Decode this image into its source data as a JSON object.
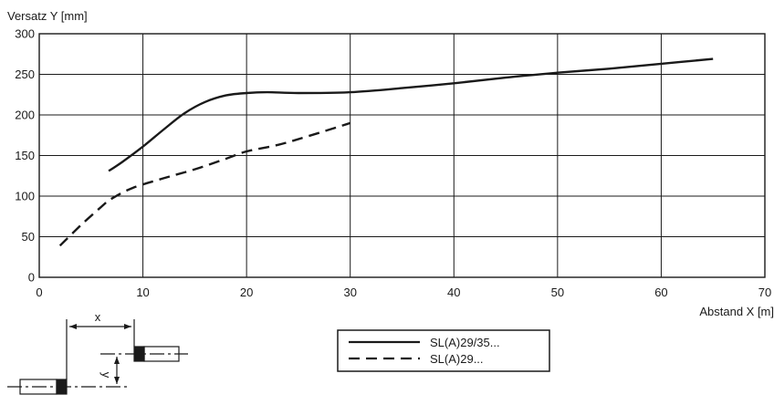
{
  "chart_data": {
    "type": "line",
    "title": "",
    "xlabel": "Abstand X [m]",
    "ylabel": "Versatz Y [mm]",
    "xlim": [
      0,
      70
    ],
    "ylim": [
      0,
      300
    ],
    "xticks": [
      0,
      10,
      20,
      30,
      40,
      50,
      60,
      70
    ],
    "yticks": [
      0,
      50,
      100,
      150,
      200,
      250,
      300
    ],
    "grid": true,
    "legend_position": "bottom-center",
    "series": [
      {
        "name": "SL(A)29/35...",
        "style": "solid",
        "color": "#1a1a1a",
        "points": [
          [
            6.7,
            131
          ],
          [
            8,
            142
          ],
          [
            10,
            161
          ],
          [
            12,
            182
          ],
          [
            14,
            202
          ],
          [
            16,
            216
          ],
          [
            18,
            224
          ],
          [
            20,
            227
          ],
          [
            22,
            228
          ],
          [
            25,
            227
          ],
          [
            30,
            228
          ],
          [
            35,
            233
          ],
          [
            40,
            239
          ],
          [
            45,
            246
          ],
          [
            50,
            252
          ],
          [
            55,
            257
          ],
          [
            60,
            263
          ],
          [
            65,
            269
          ]
        ]
      },
      {
        "name": "SL(A)29...",
        "style": "dashed",
        "color": "#1a1a1a",
        "points": [
          [
            2,
            39
          ],
          [
            4,
            64
          ],
          [
            6,
            87
          ],
          [
            7,
            97
          ],
          [
            9,
            110
          ],
          [
            12,
            122
          ],
          [
            15,
            133
          ],
          [
            18,
            146
          ],
          [
            20,
            155
          ],
          [
            23,
            163
          ],
          [
            26,
            174
          ],
          [
            30,
            190
          ]
        ]
      }
    ]
  },
  "diagram": {
    "x_label": "x",
    "y_label": "y"
  }
}
